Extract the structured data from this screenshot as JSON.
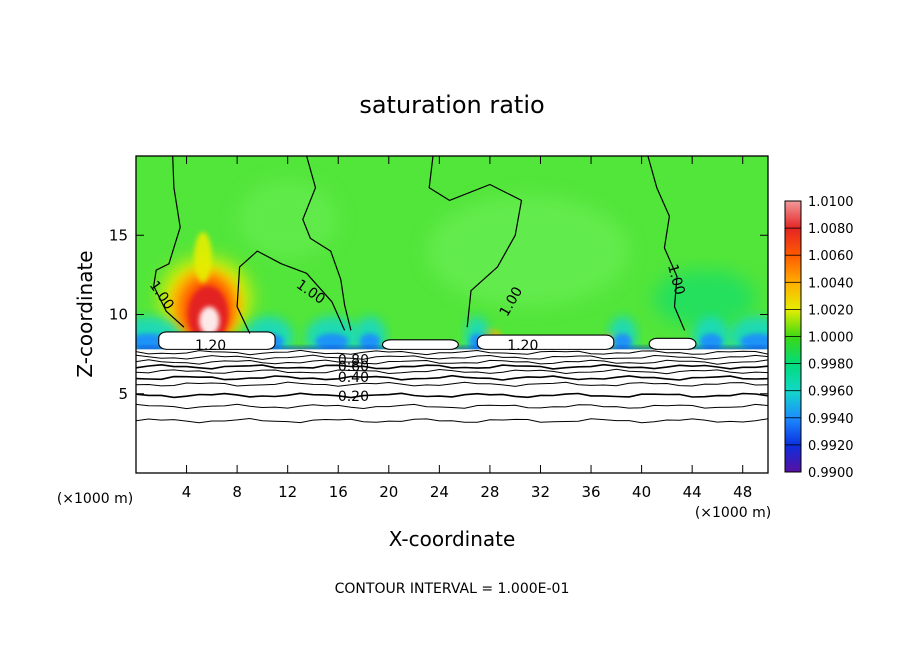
{
  "chart_data": {
    "type": "heatmap",
    "title": "saturation ratio",
    "xlabel": "X-coordinate",
    "ylabel": "Z-coordinate",
    "x_unit": "(×1000 m)",
    "y_unit": "(×1000 m)",
    "footer": "CONTOUR INTERVAL = 1.000E-01",
    "xlim": [
      0,
      50
    ],
    "ylim": [
      0,
      20
    ],
    "x_ticks": [
      {
        "value": 4,
        "label": "4"
      },
      {
        "value": 8,
        "label": "8"
      },
      {
        "value": 12,
        "label": "12"
      },
      {
        "value": 16,
        "label": "16"
      },
      {
        "value": 20,
        "label": "20"
      },
      {
        "value": 24,
        "label": "24"
      },
      {
        "value": 28,
        "label": "28"
      },
      {
        "value": 32,
        "label": "32"
      },
      {
        "value": 36,
        "label": "36"
      },
      {
        "value": 40,
        "label": "40"
      },
      {
        "value": 44,
        "label": "44"
      },
      {
        "value": 48,
        "label": "48"
      }
    ],
    "y_ticks": [
      {
        "value": 5,
        "label": "5"
      },
      {
        "value": 10,
        "label": "10"
      },
      {
        "value": 15,
        "label": "15"
      }
    ],
    "colorbar": {
      "levels": [
        {
          "value": 1.01,
          "label": "1.0100",
          "color": "#f29a9a"
        },
        {
          "value": 1.008,
          "label": "1.0080",
          "color": "#e32424"
        },
        {
          "value": 1.006,
          "label": "1.0060",
          "color": "#ff5b00"
        },
        {
          "value": 1.004,
          "label": "1.0040",
          "color": "#ffae00"
        },
        {
          "value": 1.002,
          "label": "1.0020",
          "color": "#e6ee00"
        },
        {
          "value": 1.0,
          "label": "1.0000",
          "color": "#3dd814"
        },
        {
          "value": 0.998,
          "label": "0.9980",
          "color": "#00dc7a"
        },
        {
          "value": 0.996,
          "label": "0.9960",
          "color": "#12d8c8"
        },
        {
          "value": 0.994,
          "label": "0.9940",
          "color": "#1c8cff"
        },
        {
          "value": 0.992,
          "label": "0.9920",
          "color": "#0b2fe0"
        },
        {
          "value": 0.99,
          "label": "0.9900",
          "color": "#5a0fa0"
        }
      ]
    },
    "colors": {
      "background_field": "#52e53a",
      "field_light": "#6ef05a",
      "moist_core": "#e32424",
      "moist_peak": "#ffffff",
      "dry_band": "#1c8cff"
    },
    "contour_labels": [
      {
        "text": "1.00",
        "x": 2.0,
        "y": 11.2,
        "angle": 55
      },
      {
        "text": "1.00",
        "x": 13.8,
        "y": 11.4,
        "angle": 35
      },
      {
        "text": "1.00",
        "x": 29.7,
        "y": 10.8,
        "angle": -60
      },
      {
        "text": "1.00",
        "x": 42.7,
        "y": 12.2,
        "angle": 75
      },
      {
        "text": "1.20",
        "x": 5.9,
        "y": 8.0,
        "angle": 0
      },
      {
        "text": "1.20",
        "x": 30.6,
        "y": 8.0,
        "angle": 0
      },
      {
        "text": "0.80",
        "x": 17.2,
        "y": 7.1,
        "angle": 0
      },
      {
        "text": "0.60",
        "x": 17.2,
        "y": 6.7,
        "angle": 0
      },
      {
        "text": "0.40",
        "x": 17.2,
        "y": 6.0,
        "angle": 0
      },
      {
        "text": "0.20",
        "x": 17.2,
        "y": 4.8,
        "angle": 0
      }
    ],
    "horizontal_contours_z": [
      3.3,
      4.2,
      4.9,
      5.6,
      6.0,
      6.4,
      6.7,
      7.0,
      7.3,
      7.6
    ],
    "cloud_regions": [
      {
        "x0": 1.8,
        "x1": 11.0,
        "z0": 7.8,
        "z1": 8.9
      },
      {
        "x0": 19.5,
        "x1": 25.5,
        "z0": 7.8,
        "z1": 8.4
      },
      {
        "x0": 27.0,
        "x1": 37.8,
        "z0": 7.8,
        "z1": 8.7
      },
      {
        "x0": 40.6,
        "x1": 44.3,
        "z0": 7.8,
        "z1": 8.5
      }
    ]
  }
}
